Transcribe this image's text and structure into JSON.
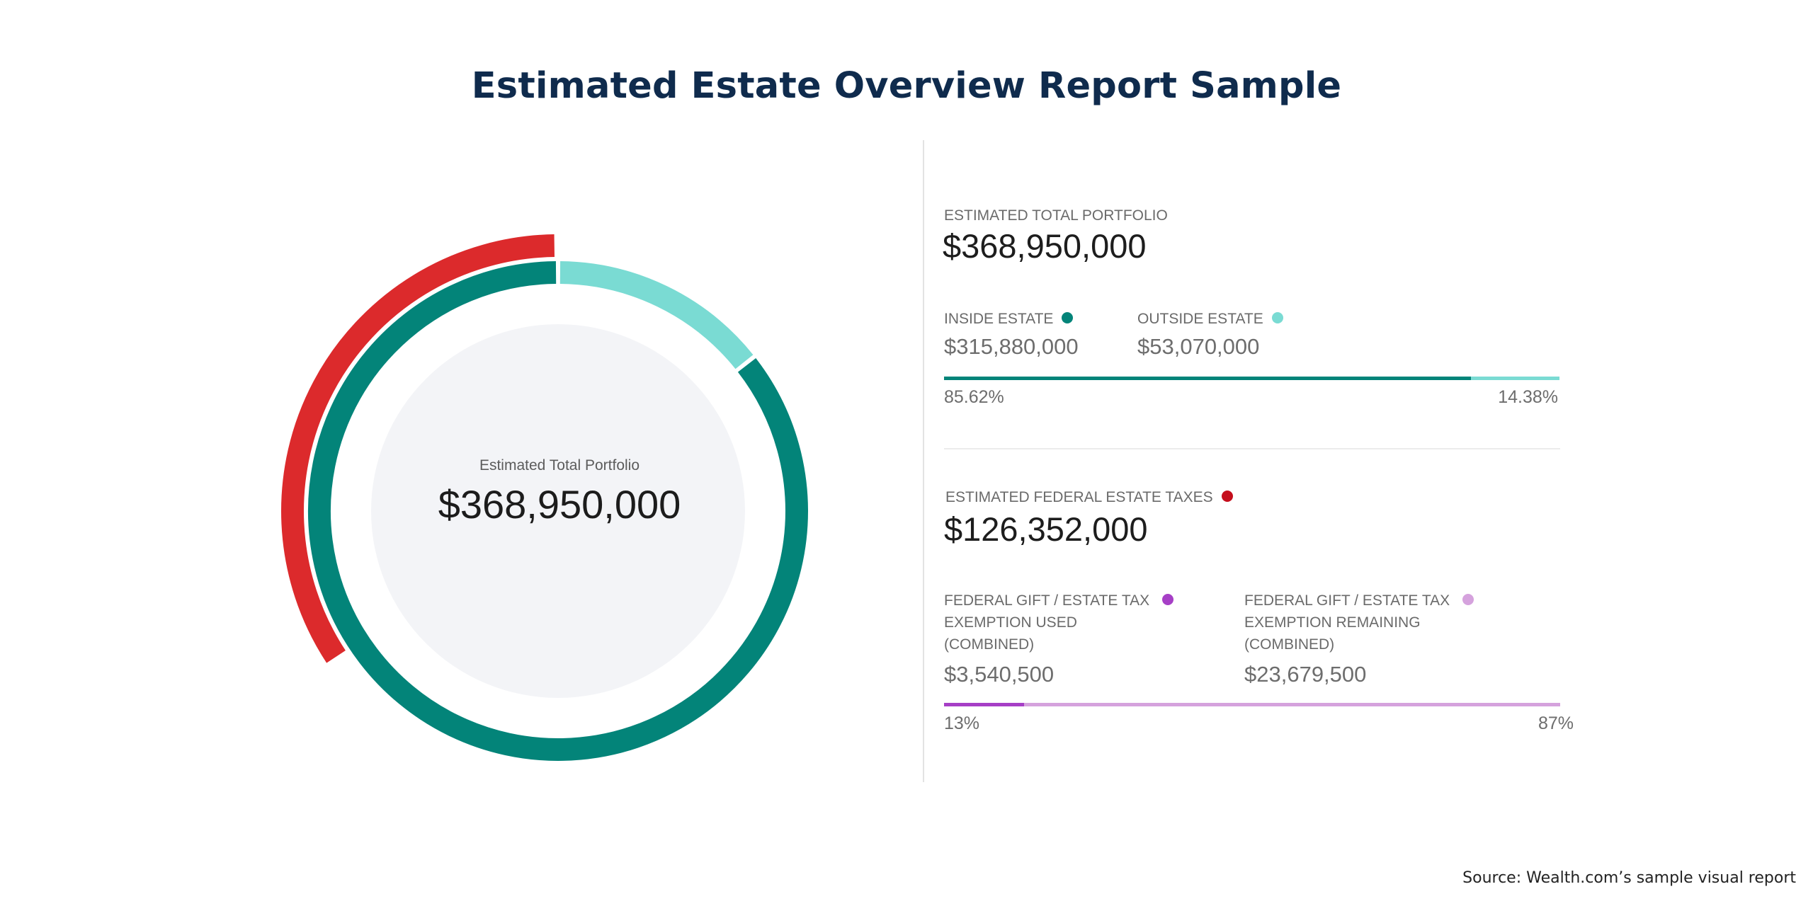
{
  "title": "Estimated Estate Overview Report Sample",
  "source": "Source: Wealth.com’s sample visual report",
  "colors": {
    "inside": "#038479",
    "outside": "#7adbd3",
    "taxes": "#dc2a2c",
    "tax_dot": "#c50e1c",
    "exemption_used": "#a63fc6",
    "exemption_remaining": "#d5a2dd",
    "donut_center": "#f3f4f7",
    "title": "#0f2b4d"
  },
  "donut": {
    "center_label": "Estimated Total Portfolio",
    "center_value": "$368,950,000"
  },
  "summary": {
    "portfolio_label": "ESTIMATED TOTAL PORTFOLIO",
    "portfolio_value": "$368,950,000",
    "inside_label": "INSIDE ESTATE",
    "inside_value": "$315,880,000",
    "outside_label": "OUTSIDE ESTATE",
    "outside_value": "$53,070,000",
    "inside_pct": "85.62%",
    "outside_pct": "14.38%",
    "taxes_label": "ESTIMATED FEDERAL ESTATE TAXES",
    "taxes_value": "$126,352,000",
    "used_label_1": "FEDERAL GIFT / ESTATE TAX",
    "used_label_2": "EXEMPTION USED",
    "used_label_3": "(COMBINED)",
    "used_value": "$3,540,500",
    "remaining_label_1": "FEDERAL GIFT / ESTATE TAX",
    "remaining_label_2": "EXEMPTION REMAINING",
    "remaining_label_3": "(COMBINED)",
    "remaining_value": "$23,679,500",
    "used_pct": "13%",
    "remaining_pct": "87%"
  },
  "chart_data": [
    {
      "type": "pie",
      "title": "Estimated Total Portfolio",
      "categories": [
        "Inside Estate",
        "Outside Estate"
      ],
      "values": [
        315880000,
        53070000
      ],
      "percentages": [
        85.62,
        14.38
      ],
      "outer_arc": {
        "name": "Estimated Federal Estate Taxes",
        "value": 126352000
      }
    },
    {
      "type": "bar",
      "categories": [
        "Inside Estate",
        "Outside Estate"
      ],
      "values": [
        85.62,
        14.38
      ],
      "unit": "%"
    },
    {
      "type": "bar",
      "categories": [
        "Exemption Used",
        "Exemption Remaining"
      ],
      "values": [
        13,
        87
      ],
      "unit": "%"
    }
  ]
}
